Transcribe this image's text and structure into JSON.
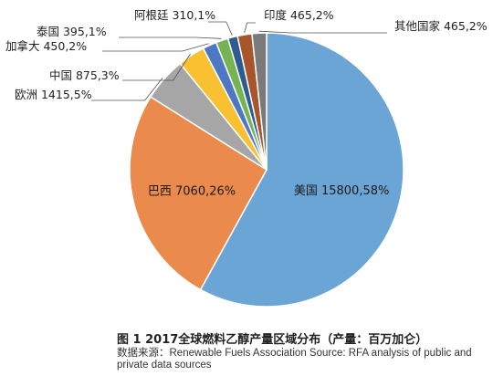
{
  "chart_data": {
    "type": "pie",
    "categories": [
      "美国",
      "巴西",
      "欧洲",
      "中国",
      "加拿大",
      "泰国",
      "阿根廷",
      "印度",
      "其他国家"
    ],
    "values": [
      15800,
      7060,
      1415,
      875,
      450,
      395,
      310,
      465,
      465
    ],
    "percents": [
      58,
      26,
      5,
      3,
      2,
      1,
      1,
      2,
      2
    ],
    "labels": [
      "美国 15800,58%",
      "巴西 7060,26%",
      "欧洲 1415,5%",
      "中国 875,3%",
      "加拿大 450,2%",
      "泰国 395,1%",
      "阿根廷 310,1%",
      "印度 465,2%",
      "其他国家 465,2%"
    ],
    "colors": [
      "#6ba5d6",
      "#ea8a4c",
      "#a6a6a6",
      "#f9c132",
      "#4d79c4",
      "#76b352",
      "#2e5c8f",
      "#a8552b",
      "#7a7a7a"
    ],
    "title": "图 1 2017全球燃料乙醇产量区域分布（产量：百万加仑）",
    "source": "数据来源：Renewable Fuels Association Source: RFA analysis of public and private data sources"
  }
}
